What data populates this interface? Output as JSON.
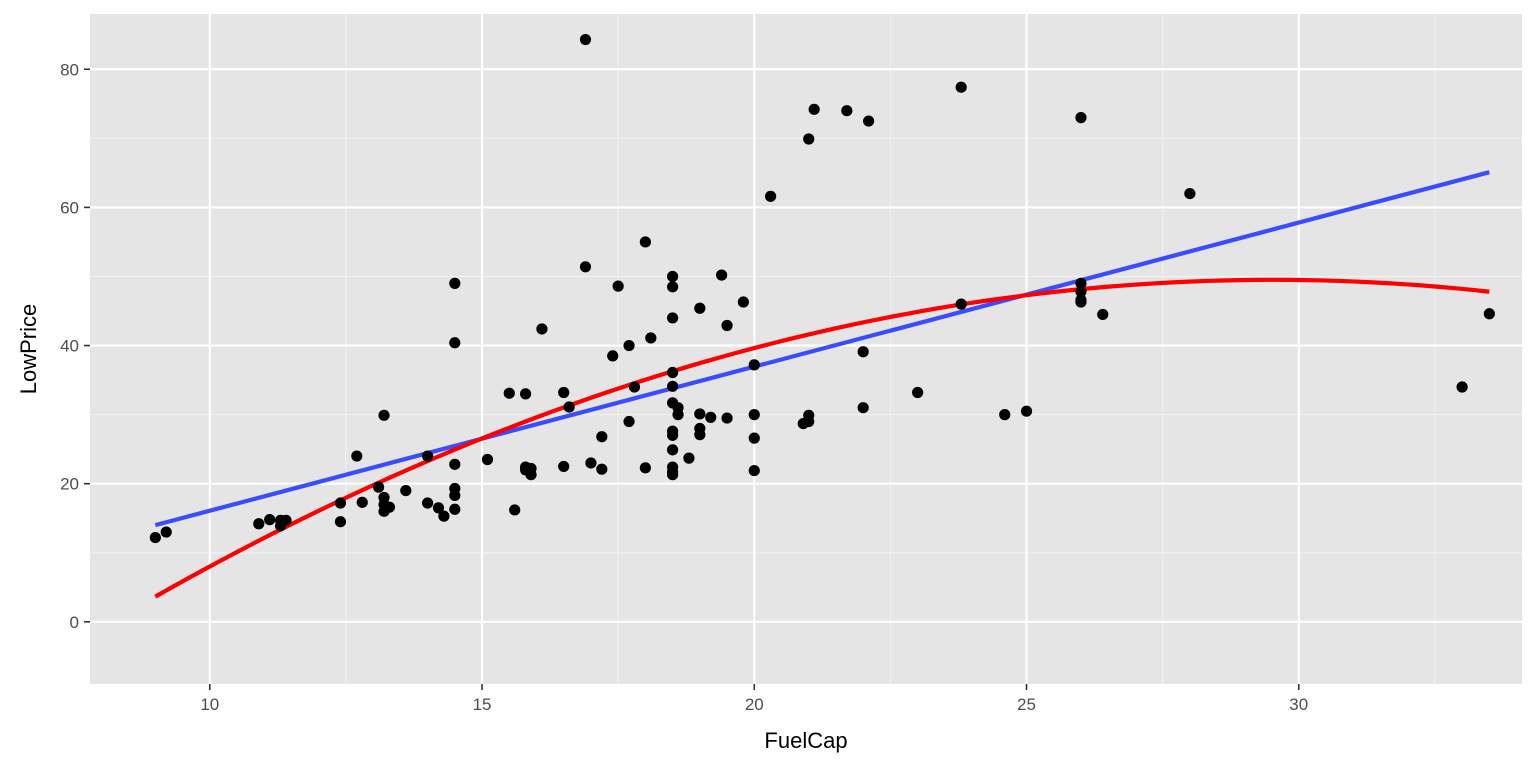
{
  "chart_data": {
    "type": "scatter",
    "title": "",
    "xlabel": "FuelCap",
    "ylabel": "LowPrice",
    "xlim": [
      7.8,
      34.1
    ],
    "ylim": [
      -9,
      88
    ],
    "x_ticks": [
      10,
      15,
      20,
      25,
      30
    ],
    "y_ticks": [
      0,
      20,
      40,
      60,
      80
    ],
    "x_tick_labels": [
      "10",
      "15",
      "20",
      "25",
      "30"
    ],
    "y_tick_labels": [
      "0",
      "20",
      "40",
      "60",
      "80"
    ],
    "grid": true,
    "legend": "none",
    "points": [
      [
        9.0,
        12.2
      ],
      [
        9.2,
        13.0
      ],
      [
        10.9,
        14.2
      ],
      [
        11.1,
        14.8
      ],
      [
        11.3,
        13.9
      ],
      [
        11.3,
        14.7
      ],
      [
        11.4,
        14.7
      ],
      [
        12.4,
        17.2
      ],
      [
        12.4,
        14.5
      ],
      [
        12.7,
        24.0
      ],
      [
        12.8,
        17.3
      ],
      [
        13.1,
        19.5
      ],
      [
        13.2,
        18.0
      ],
      [
        13.2,
        17.0
      ],
      [
        13.2,
        16.0
      ],
      [
        13.2,
        29.9
      ],
      [
        13.3,
        16.6
      ],
      [
        13.6,
        19.0
      ],
      [
        14.0,
        24.0
      ],
      [
        14.0,
        17.2
      ],
      [
        14.2,
        16.5
      ],
      [
        14.3,
        15.3
      ],
      [
        14.5,
        49.0
      ],
      [
        14.5,
        40.4
      ],
      [
        14.5,
        22.8
      ],
      [
        14.5,
        19.3
      ],
      [
        14.5,
        18.3
      ],
      [
        14.5,
        16.3
      ],
      [
        15.1,
        23.5
      ],
      [
        15.5,
        33.1
      ],
      [
        15.6,
        16.2
      ],
      [
        15.8,
        33.0
      ],
      [
        15.8,
        22.4
      ],
      [
        15.8,
        22.0
      ],
      [
        15.9,
        22.2
      ],
      [
        15.9,
        21.3
      ],
      [
        16.1,
        42.4
      ],
      [
        16.5,
        33.2
      ],
      [
        16.5,
        22.5
      ],
      [
        16.6,
        31.1
      ],
      [
        16.9,
        84.3
      ],
      [
        16.9,
        51.4
      ],
      [
        17.0,
        23.0
      ],
      [
        17.2,
        26.8
      ],
      [
        17.2,
        22.1
      ],
      [
        17.4,
        38.5
      ],
      [
        17.5,
        48.6
      ],
      [
        17.7,
        40.0
      ],
      [
        17.7,
        29.0
      ],
      [
        17.8,
        34.0
      ],
      [
        18.0,
        55.0
      ],
      [
        18.0,
        22.3
      ],
      [
        18.1,
        41.1
      ],
      [
        18.5,
        50.0
      ],
      [
        18.5,
        48.5
      ],
      [
        18.5,
        44.0
      ],
      [
        18.5,
        36.1
      ],
      [
        18.5,
        34.1
      ],
      [
        18.5,
        31.7
      ],
      [
        18.5,
        27.6
      ],
      [
        18.5,
        27.0
      ],
      [
        18.5,
        24.9
      ],
      [
        18.5,
        22.4
      ],
      [
        18.5,
        21.7
      ],
      [
        18.5,
        21.3
      ],
      [
        18.6,
        31.0
      ],
      [
        18.6,
        30.0
      ],
      [
        18.8,
        23.7
      ],
      [
        19.0,
        45.4
      ],
      [
        19.0,
        30.1
      ],
      [
        19.0,
        28.0
      ],
      [
        19.0,
        27.1
      ],
      [
        19.2,
        29.6
      ],
      [
        19.4,
        50.2
      ],
      [
        19.5,
        42.9
      ],
      [
        19.5,
        29.5
      ],
      [
        19.8,
        46.3
      ],
      [
        20.0,
        37.2
      ],
      [
        20.0,
        30.0
      ],
      [
        20.0,
        26.6
      ],
      [
        20.0,
        21.9
      ],
      [
        20.3,
        61.6
      ],
      [
        20.9,
        28.7
      ],
      [
        21.0,
        69.9
      ],
      [
        21.0,
        29.9
      ],
      [
        21.0,
        29.0
      ],
      [
        21.1,
        74.2
      ],
      [
        21.7,
        74.0
      ],
      [
        22.0,
        39.1
      ],
      [
        22.0,
        31.0
      ],
      [
        22.1,
        72.5
      ],
      [
        23.0,
        33.2
      ],
      [
        23.8,
        77.4
      ],
      [
        23.8,
        46.0
      ],
      [
        24.6,
        30.0
      ],
      [
        25.0,
        30.5
      ],
      [
        26.0,
        73.0
      ],
      [
        26.0,
        49.0
      ],
      [
        26.0,
        47.8
      ],
      [
        26.0,
        46.6
      ],
      [
        26.0,
        46.3
      ],
      [
        26.4,
        44.5
      ],
      [
        28.0,
        62.0
      ],
      [
        33.0,
        34.0
      ],
      [
        33.5,
        44.6
      ]
    ],
    "fits": [
      {
        "method": "linear",
        "color": "#3A4CFF",
        "x": [
          9.0,
          33.5
        ],
        "y": [
          14.0,
          65.1
        ]
      },
      {
        "method": "quadratic",
        "color": "#FF0000",
        "coef": [
          -45.4,
          6.43,
          -0.1089
        ],
        "x_range": [
          9.0,
          33.5
        ]
      }
    ],
    "colors": {
      "panel_background": "#E5E5E5",
      "grid_major": "#FFFFFF",
      "grid_minor": "#F2F2F2",
      "points": "#000000",
      "tick_text": "#4D4D4D",
      "tick_mark": "#333333"
    }
  }
}
